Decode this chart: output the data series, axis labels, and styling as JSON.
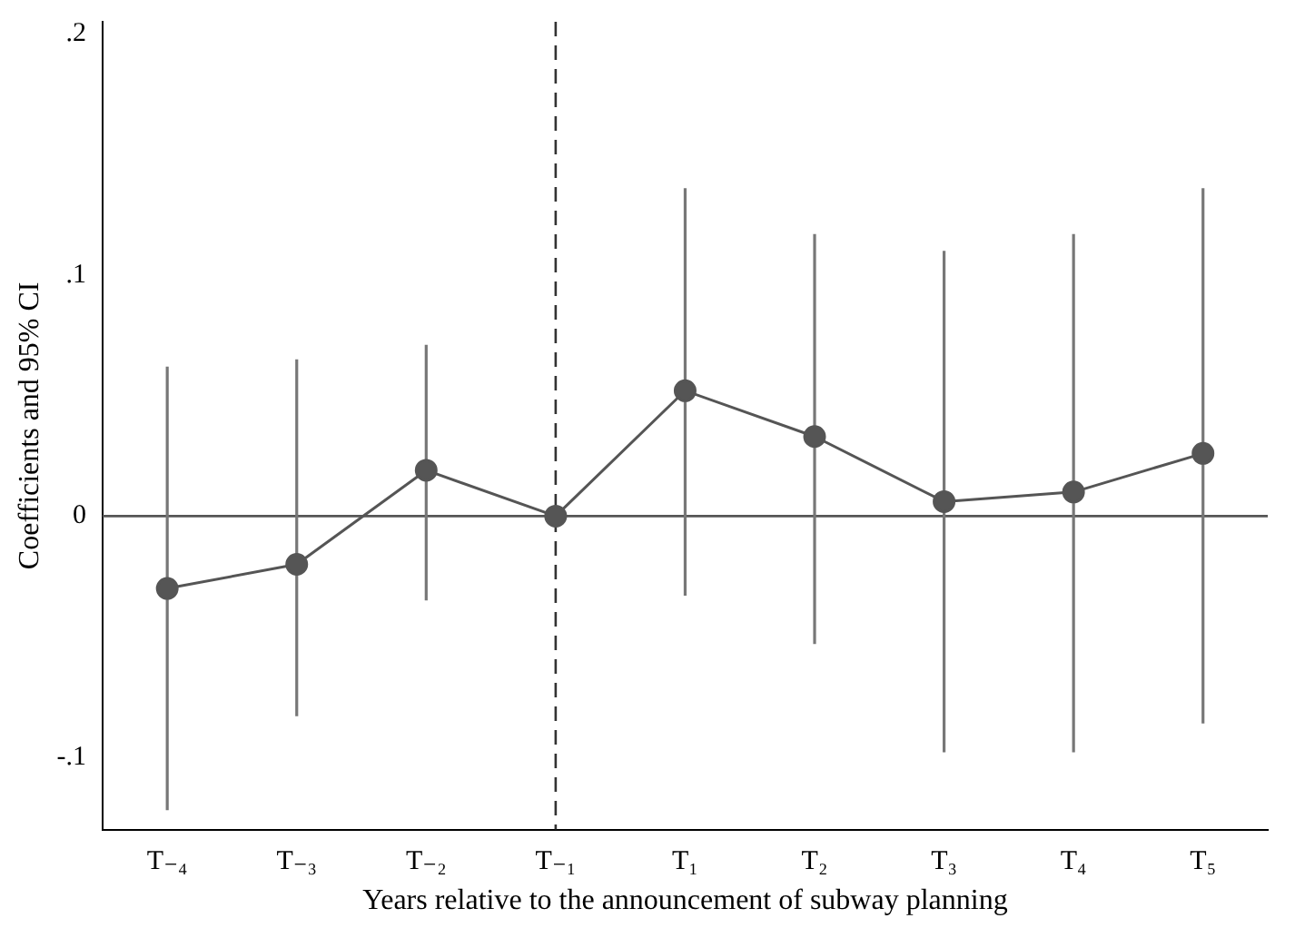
{
  "chart_data": {
    "type": "line",
    "xlabel": "Years relative to the announcement of subway planning",
    "ylabel": "Coefficients and 95% CI",
    "categories": [
      "T₋₄",
      "T₋₃",
      "T₋₂",
      "T₋₁",
      "T₁",
      "T₂",
      "T₃",
      "T₄",
      "T₅"
    ],
    "series": [
      {
        "color": "#555555",
        "values": [
          -0.03,
          -0.02,
          0.019,
          0,
          0.052,
          0.033,
          0.006,
          0.01,
          0.026
        ],
        "errors": [
          [
            -0.122,
            0.062
          ],
          [
            -0.083,
            0.065
          ],
          [
            -0.035,
            0.071
          ],
          null,
          [
            -0.033,
            0.136
          ],
          [
            -0.053,
            0.117
          ],
          [
            -0.098,
            0.11
          ],
          [
            -0.098,
            0.117
          ],
          [
            -0.086,
            0.136
          ]
        ]
      }
    ],
    "ylim": [
      -0.13,
      0.205
    ],
    "yticks": [
      {
        "value": -0.1,
        "label": "-.1"
      },
      {
        "value": 0,
        "label": "0"
      },
      {
        "value": 0.1,
        "label": ".1"
      },
      {
        "value": 0.2,
        "label": ".2"
      }
    ],
    "ref_lines": [
      {
        "axis": "x",
        "value": "T₋₁",
        "line_style": "dashed",
        "color": "#333333"
      },
      {
        "axis": "y",
        "value": 0,
        "line_style": "solid",
        "color": "#555555"
      }
    ],
    "grid": false,
    "legend": false,
    "marker": "circle",
    "line_style": "solid"
  }
}
